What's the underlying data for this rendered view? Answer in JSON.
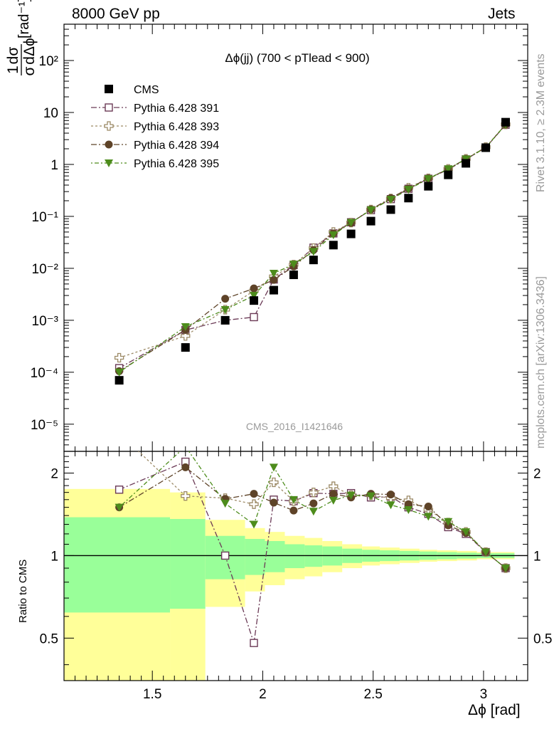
{
  "header": {
    "left_label": "8000 GeV pp",
    "right_label": "Jets"
  },
  "side_labels": {
    "rivet": "Rivet 3.1.10, ≥ 2.3M events",
    "mcplots": "mcplots.cern.ch [arXiv:1306.3436]"
  },
  "plot": {
    "title": "Δϕ(jj) (700 < pTlead <  900)",
    "ylabel": "1/σ dσ/dΔϕ [rad⁻¹]",
    "watermark": "CMS_2016_I1421646",
    "ratio_ylabel": "Ratio to CMS",
    "xlabel": "Δϕ [rad]",
    "legend": [
      "CMS",
      "Pythia 6.428 391",
      "Pythia 6.428 393",
      "Pythia 6.428 394",
      "Pythia 6.428 395"
    ]
  },
  "chart_data": {
    "type": "scatter",
    "title": "Δϕ(jj) (700 < pTlead <  900)",
    "xlabel": "Δϕ [rad]",
    "ylabel": "1/σ dσ/dΔϕ [rad⁻¹]",
    "xlim": [
      1.1,
      3.2
    ],
    "ylim": [
      3e-06,
      500
    ],
    "yscale": "log",
    "xticks": [
      "1.5",
      "2",
      "2.5",
      "3"
    ],
    "yticks": [
      "10⁻⁵",
      "10⁻⁴",
      "10⁻³",
      "10⁻²",
      "10⁻¹",
      "1",
      "10",
      "10²"
    ],
    "legend_position": "top-left",
    "colors": {
      "cms": "#000000",
      "p391": "#6b3a56",
      "p393": "#9c8a66",
      "p394": "#5e4328",
      "p395": "#4d8c1c",
      "band_inner": "#99ff99",
      "band_outer": "#ffff99"
    },
    "x": [
      1.35,
      1.65,
      1.83,
      1.96,
      2.05,
      2.14,
      2.23,
      2.32,
      2.4,
      2.49,
      2.58,
      2.66,
      2.75,
      2.84,
      2.92,
      3.01,
      3.1
    ],
    "series": [
      {
        "name": "CMS",
        "values": [
          7e-05,
          0.0003,
          0.001,
          0.0024,
          0.0038,
          0.0075,
          0.0145,
          0.028,
          0.046,
          0.081,
          0.135,
          0.225,
          0.38,
          0.63,
          1.05,
          2.1,
          6.5
        ]
      },
      {
        "name": "Pythia 6.428 391",
        "values": [
          0.00012,
          0.00065,
          0.001,
          0.00115,
          0.0061,
          0.0115,
          0.025,
          0.047,
          0.077,
          0.132,
          0.215,
          0.34,
          0.53,
          0.8,
          1.25,
          2.1,
          5.8
        ]
      },
      {
        "name": "Pythia 6.428 393",
        "values": [
          0.00019,
          0.0005,
          0.0016,
          0.0037,
          0.007,
          0.0118,
          0.0245,
          0.05,
          0.076,
          0.135,
          0.22,
          0.355,
          0.54,
          0.82,
          1.28,
          2.15,
          5.9
        ]
      },
      {
        "name": "Pythia 6.428 394",
        "values": [
          0.000105,
          0.00065,
          0.0026,
          0.0041,
          0.006,
          0.0109,
          0.0225,
          0.047,
          0.075,
          0.136,
          0.225,
          0.345,
          0.54,
          0.81,
          1.28,
          2.12,
          5.85
        ]
      },
      {
        "name": "Pythia 6.428 395",
        "values": [
          0.0001,
          0.00075,
          0.0016,
          0.003,
          0.008,
          0.012,
          0.021,
          0.044,
          0.076,
          0.133,
          0.212,
          0.33,
          0.53,
          0.82,
          1.27,
          2.1,
          5.9
        ]
      }
    ],
    "ratio": {
      "ylabel": "Ratio to CMS",
      "ylim": [
        0.35,
        2.4
      ],
      "yticks": [
        "0.5",
        "1",
        "2"
      ],
      "series": [
        {
          "name": "Pythia 6.428 391",
          "values": [
            1.74,
            2.2,
            1.0,
            0.48,
            1.6,
            1.58,
            1.69,
            1.68,
            1.69,
            1.63,
            1.64,
            1.5,
            1.42,
            1.27,
            1.2,
            1.03,
            0.9
          ]
        },
        {
          "name": "Pythia 6.428 393",
          "values": [
            2.8,
            1.65,
            1.62,
            1.54,
            1.85,
            1.58,
            1.7,
            1.79,
            1.66,
            1.66,
            1.62,
            1.59,
            1.47,
            1.32,
            1.22,
            1.03,
            0.9
          ]
        },
        {
          "name": "Pythia 6.428 394",
          "values": [
            1.5,
            2.1,
            1.61,
            1.68,
            1.56,
            1.46,
            1.55,
            1.68,
            1.63,
            1.68,
            1.67,
            1.54,
            1.51,
            1.29,
            1.21,
            1.03,
            0.9
          ]
        },
        {
          "name": "Pythia 6.428 395",
          "values": [
            1.5,
            2.5,
            1.55,
            1.3,
            2.1,
            1.6,
            1.45,
            1.59,
            1.66,
            1.65,
            1.53,
            1.47,
            1.39,
            1.33,
            1.22,
            1.03,
            0.9
          ]
        }
      ],
      "band_edges": [
        1.1,
        1.58,
        1.74,
        1.92,
        2.01,
        2.1,
        2.19,
        2.27,
        2.36,
        2.45,
        2.53,
        2.62,
        2.71,
        2.79,
        2.88,
        2.97,
        3.05,
        3.14
      ],
      "band_inner_halfwidth": [
        0.38,
        0.36,
        0.18,
        0.15,
        0.13,
        0.1,
        0.09,
        0.08,
        0.06,
        0.05,
        0.045,
        0.04,
        0.035,
        0.03,
        0.025,
        0.02,
        0.02
      ],
      "band_outer_halfwidth": [
        0.75,
        0.7,
        0.35,
        0.26,
        0.22,
        0.18,
        0.16,
        0.13,
        0.1,
        0.08,
        0.07,
        0.06,
        0.05,
        0.045,
        0.04,
        0.03,
        0.03
      ]
    }
  }
}
